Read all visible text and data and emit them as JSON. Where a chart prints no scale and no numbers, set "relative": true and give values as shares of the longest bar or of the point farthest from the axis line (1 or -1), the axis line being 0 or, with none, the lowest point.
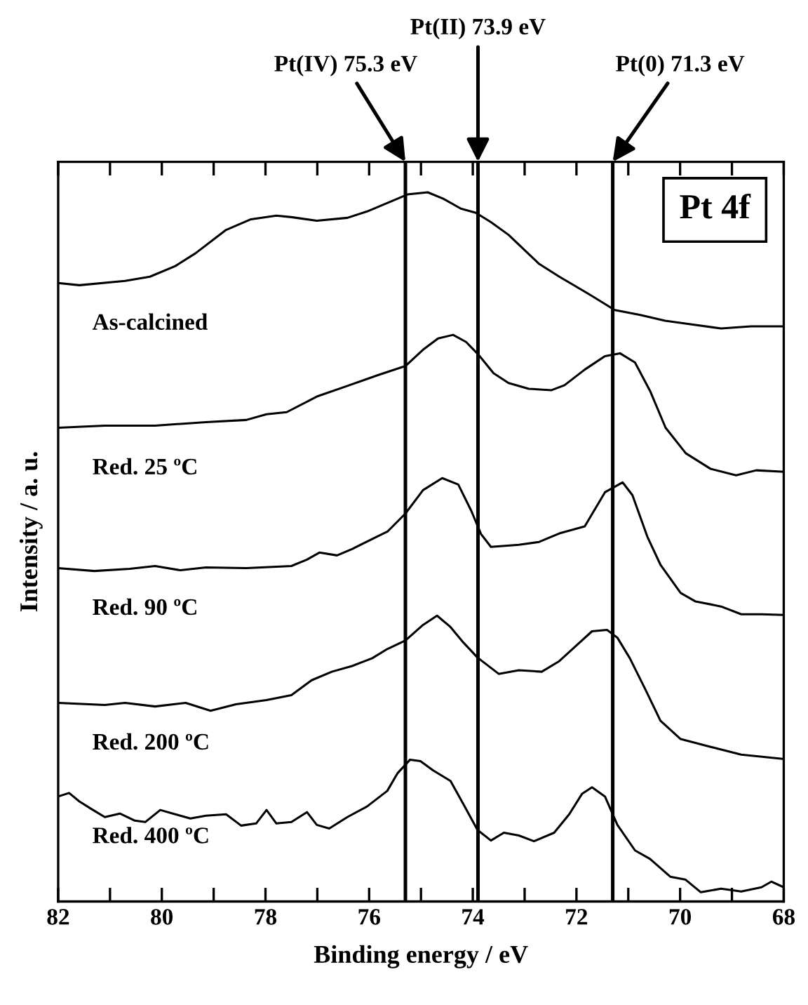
{
  "chart_data": {
    "type": "line",
    "relative": true,
    "xlabel": "Binding energy / eV",
    "ylabel": "Intensity / a. u.",
    "xlim": [
      82,
      68
    ],
    "xticks": [
      82,
      {
        "value": 81,
        "label": null
      },
      80,
      {
        "value": 79,
        "label": null
      },
      78,
      {
        "value": 77,
        "label": null
      },
      76,
      {
        "value": 75,
        "label": null
      },
      74,
      {
        "value": 73,
        "label": null
      },
      72,
      {
        "value": 71,
        "label": null
      },
      70,
      {
        "value": 69,
        "label": null
      },
      68
    ],
    "grid": false,
    "marker": "none",
    "line_style": "solid",
    "annotations": [
      "Pt 4f"
    ],
    "ref_lines": [
      {
        "axis": "x",
        "value": 75.3,
        "label": "Pt(IV) 75.3 eV",
        "color": "#000000"
      },
      {
        "axis": "x",
        "value": 73.9,
        "label": "Pt(II) 73.9 eV",
        "color": "#000000"
      },
      {
        "axis": "x",
        "value": 71.3,
        "label": "Pt(0) 71.3 eV",
        "color": "#000000"
      }
    ],
    "series": [
      {
        "name": "As-calcined",
        "color": "#000000",
        "x": [
          82.0,
          81.59,
          80.71,
          80.23,
          79.74,
          79.35,
          78.76,
          78.28,
          77.79,
          77.5,
          77.01,
          76.42,
          76.04,
          75.55,
          75.26,
          74.87,
          74.57,
          74.23,
          73.94,
          73.65,
          73.31,
          72.72,
          72.33,
          71.75,
          71.26,
          70.77,
          70.29,
          69.8,
          69.21,
          68.63,
          68.0
        ],
        "values": [
          0.872,
          0.869,
          0.875,
          0.881,
          0.896,
          0.914,
          0.947,
          0.962,
          0.967,
          0.965,
          0.96,
          0.964,
          0.973,
          0.988,
          0.997,
          1.0,
          0.991,
          0.977,
          0.971,
          0.958,
          0.94,
          0.899,
          0.881,
          0.856,
          0.834,
          0.827,
          0.819,
          0.814,
          0.808,
          0.811,
          0.811
        ]
      },
      {
        "name": "Red. 25 ºC",
        "color": "#000000",
        "x": [
          82.0,
          81.1,
          80.13,
          79.15,
          78.37,
          77.98,
          77.59,
          77.01,
          76.42,
          75.84,
          75.3,
          74.96,
          74.67,
          74.38,
          74.13,
          73.89,
          73.6,
          73.31,
          72.92,
          72.48,
          72.23,
          71.84,
          71.45,
          71.16,
          70.87,
          70.58,
          70.28,
          69.89,
          69.41,
          68.92,
          68.53,
          68.0
        ],
        "values": [
          0.668,
          0.671,
          0.671,
          0.676,
          0.679,
          0.687,
          0.69,
          0.712,
          0.727,
          0.742,
          0.755,
          0.778,
          0.794,
          0.799,
          0.789,
          0.771,
          0.745,
          0.731,
          0.723,
          0.721,
          0.728,
          0.75,
          0.769,
          0.773,
          0.76,
          0.72,
          0.668,
          0.632,
          0.61,
          0.601,
          0.608,
          0.606
        ]
      },
      {
        "name": "Red. 90 ºC",
        "color": "#000000",
        "x": [
          82.0,
          81.3,
          80.62,
          80.13,
          79.64,
          79.15,
          78.37,
          77.5,
          77.2,
          76.96,
          76.62,
          76.33,
          75.64,
          75.3,
          74.96,
          74.59,
          74.28,
          74.03,
          73.84,
          73.65,
          73.11,
          72.72,
          72.33,
          71.84,
          71.45,
          71.11,
          70.92,
          70.63,
          70.38,
          69.99,
          69.7,
          69.21,
          68.82,
          68.43,
          68.0
        ],
        "values": [
          0.47,
          0.466,
          0.469,
          0.473,
          0.467,
          0.471,
          0.47,
          0.473,
          0.482,
          0.492,
          0.488,
          0.497,
          0.522,
          0.547,
          0.58,
          0.597,
          0.588,
          0.551,
          0.518,
          0.5,
          0.503,
          0.507,
          0.519,
          0.529,
          0.577,
          0.591,
          0.573,
          0.514,
          0.475,
          0.435,
          0.423,
          0.416,
          0.405,
          0.405,
          0.404
        ]
      },
      {
        "name": "Red. 200 ºC",
        "color": "#000000",
        "x": [
          82.0,
          81.1,
          80.71,
          80.13,
          79.54,
          79.06,
          78.57,
          77.98,
          77.5,
          77.11,
          76.72,
          76.33,
          75.94,
          75.65,
          75.3,
          74.96,
          74.69,
          74.43,
          74.18,
          73.91,
          73.5,
          73.11,
          72.67,
          72.33,
          71.94,
          71.7,
          71.41,
          71.21,
          70.97,
          70.67,
          70.38,
          69.99,
          69.41,
          68.82,
          68.0
        ],
        "values": [
          0.28,
          0.277,
          0.28,
          0.275,
          0.28,
          0.269,
          0.278,
          0.284,
          0.291,
          0.312,
          0.324,
          0.332,
          0.343,
          0.356,
          0.368,
          0.39,
          0.403,
          0.387,
          0.365,
          0.344,
          0.321,
          0.326,
          0.324,
          0.339,
          0.365,
          0.381,
          0.383,
          0.372,
          0.343,
          0.299,
          0.255,
          0.229,
          0.218,
          0.207,
          0.201
        ]
      },
      {
        "name": "Red. 400 ºC",
        "color": "#000000",
        "x": [
          82.0,
          81.79,
          81.59,
          81.35,
          81.1,
          80.81,
          80.52,
          80.32,
          80.03,
          79.74,
          79.45,
          79.15,
          78.76,
          78.47,
          78.18,
          77.98,
          77.79,
          77.5,
          77.2,
          77.01,
          76.77,
          76.42,
          76.04,
          75.65,
          75.45,
          75.21,
          75.01,
          74.77,
          74.43,
          74.18,
          73.91,
          73.65,
          73.4,
          73.11,
          72.82,
          72.43,
          72.14,
          71.89,
          71.7,
          71.45,
          71.21,
          70.87,
          70.58,
          70.19,
          69.9,
          69.6,
          69.21,
          68.82,
          68.43,
          68.24,
          68.0
        ],
        "values": [
          0.148,
          0.153,
          0.141,
          0.13,
          0.119,
          0.124,
          0.114,
          0.112,
          0.129,
          0.123,
          0.117,
          0.121,
          0.123,
          0.107,
          0.11,
          0.129,
          0.11,
          0.112,
          0.126,
          0.108,
          0.103,
          0.119,
          0.134,
          0.156,
          0.181,
          0.2,
          0.198,
          0.185,
          0.17,
          0.137,
          0.101,
          0.086,
          0.097,
          0.093,
          0.085,
          0.097,
          0.123,
          0.152,
          0.161,
          0.148,
          0.108,
          0.072,
          0.06,
          0.035,
          0.031,
          0.013,
          0.018,
          0.014,
          0.02,
          0.028,
          0.02
        ]
      }
    ]
  }
}
